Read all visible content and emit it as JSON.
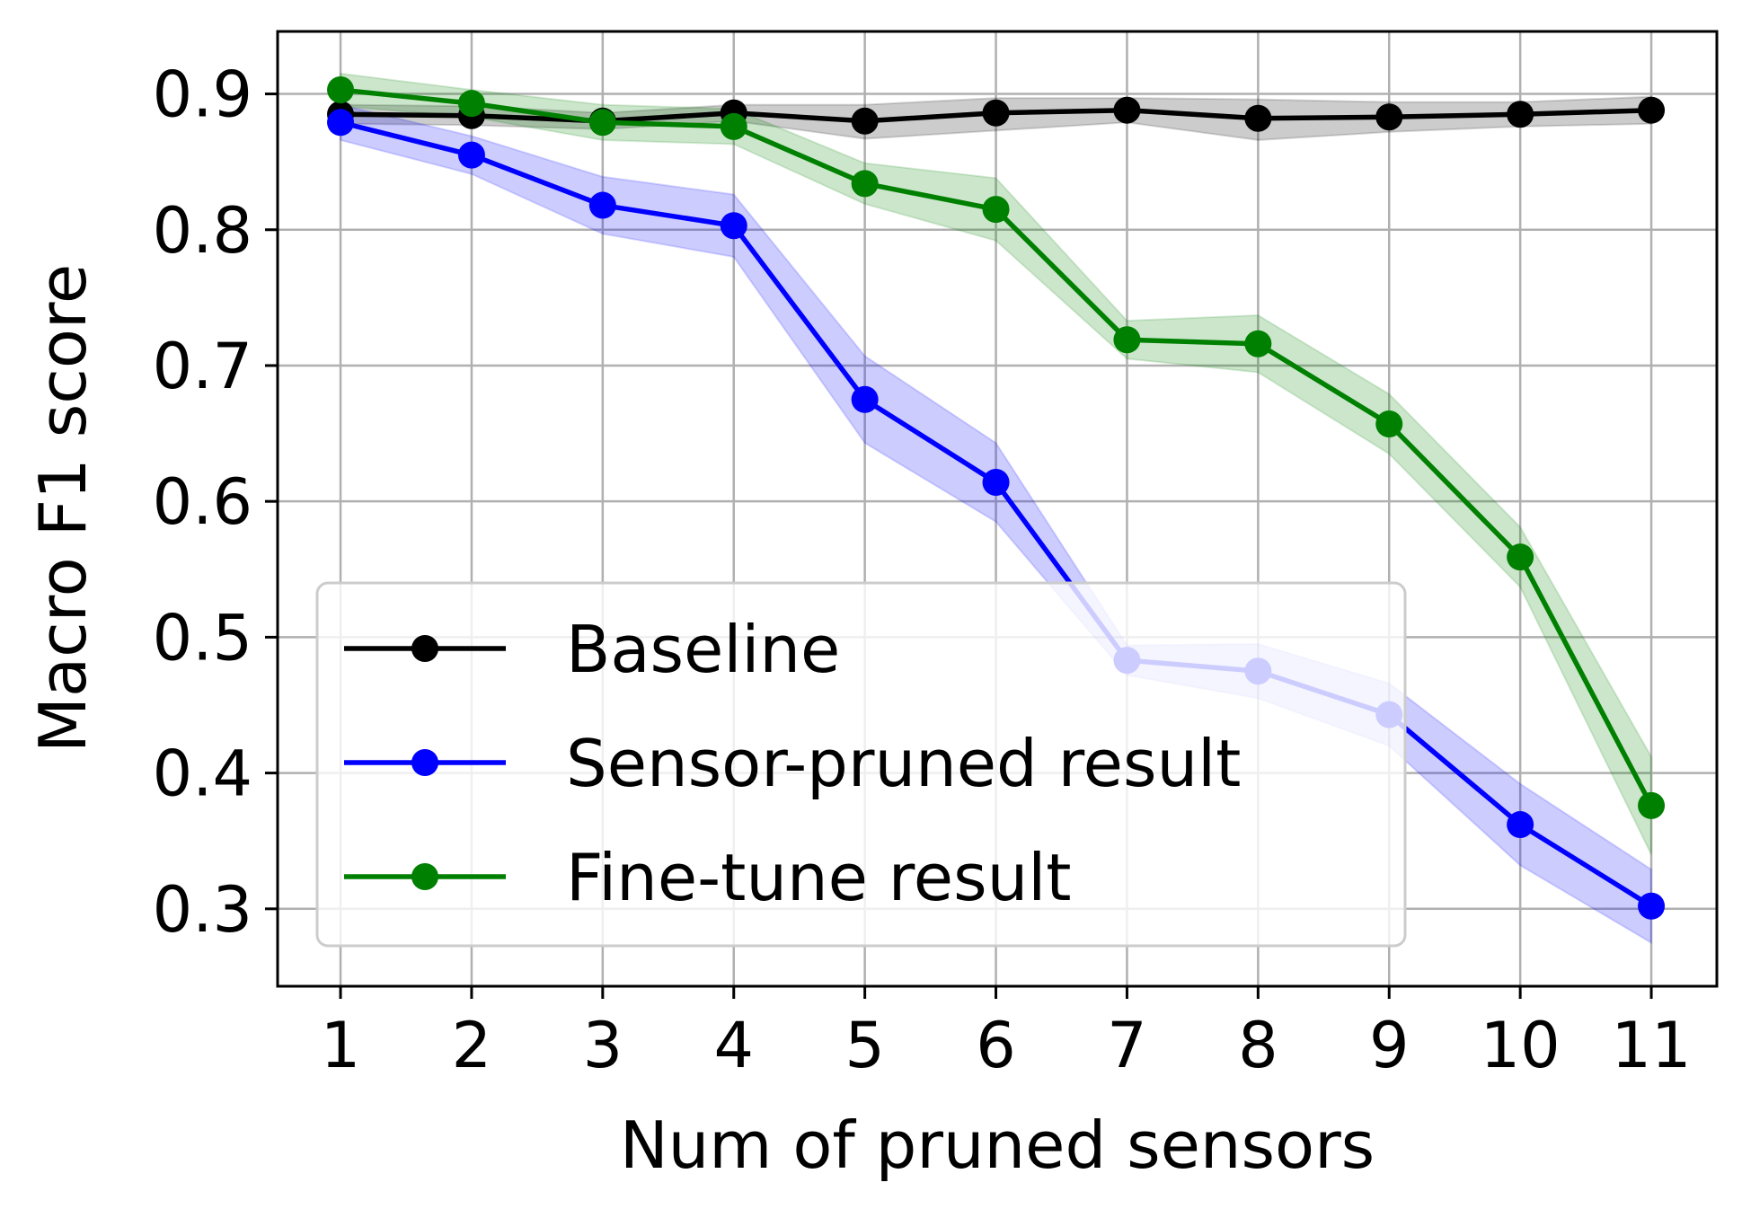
{
  "chart_data": {
    "type": "line",
    "title": "",
    "xlabel": "Num of pruned sensors",
    "ylabel": "Macro F1 score",
    "x": [
      1,
      2,
      3,
      4,
      5,
      6,
      7,
      8,
      9,
      10,
      11
    ],
    "xticks": [
      "1",
      "2",
      "3",
      "4",
      "5",
      "6",
      "7",
      "8",
      "9",
      "10",
      "11"
    ],
    "yticks": [
      "0.3",
      "0.4",
      "0.5",
      "0.6",
      "0.7",
      "0.8",
      "0.9"
    ],
    "xlim": [
      0.52,
      11.5
    ],
    "ylim": [
      0.243,
      0.946
    ],
    "grid": true,
    "legend_position": "lower-left",
    "series": [
      {
        "name": "Baseline",
        "color": "#000000",
        "marker": "circle",
        "values": [
          0.885,
          0.884,
          0.88,
          0.886,
          0.88,
          0.886,
          0.888,
          0.882,
          0.883,
          0.885,
          0.888
        ],
        "lower": [
          0.878,
          0.877,
          0.874,
          0.88,
          0.867,
          0.873,
          0.879,
          0.866,
          0.872,
          0.876,
          0.878
        ],
        "upper": [
          0.892,
          0.891,
          0.886,
          0.892,
          0.892,
          0.897,
          0.897,
          0.896,
          0.894,
          0.894,
          0.898
        ]
      },
      {
        "name": "Sensor-pruned result",
        "color": "#0000ff",
        "marker": "circle",
        "values": [
          0.879,
          0.855,
          0.818,
          0.803,
          0.675,
          0.614,
          0.483,
          0.475,
          0.443,
          0.362,
          0.302
        ],
        "lower": [
          0.866,
          0.841,
          0.797,
          0.78,
          0.643,
          0.585,
          0.472,
          0.455,
          0.42,
          0.332,
          0.275
        ],
        "upper": [
          0.892,
          0.869,
          0.839,
          0.826,
          0.707,
          0.643,
          0.494,
          0.495,
          0.466,
          0.392,
          0.329
        ]
      },
      {
        "name": "Fine-tune result",
        "color": "#008000",
        "marker": "circle",
        "values": [
          0.903,
          0.893,
          0.879,
          0.876,
          0.834,
          0.815,
          0.719,
          0.716,
          0.657,
          0.559,
          0.376
        ],
        "lower": [
          0.891,
          0.883,
          0.866,
          0.863,
          0.819,
          0.792,
          0.705,
          0.695,
          0.635,
          0.537,
          0.34
        ],
        "upper": [
          0.915,
          0.903,
          0.892,
          0.889,
          0.849,
          0.838,
          0.733,
          0.737,
          0.679,
          0.581,
          0.412
        ]
      }
    ]
  }
}
